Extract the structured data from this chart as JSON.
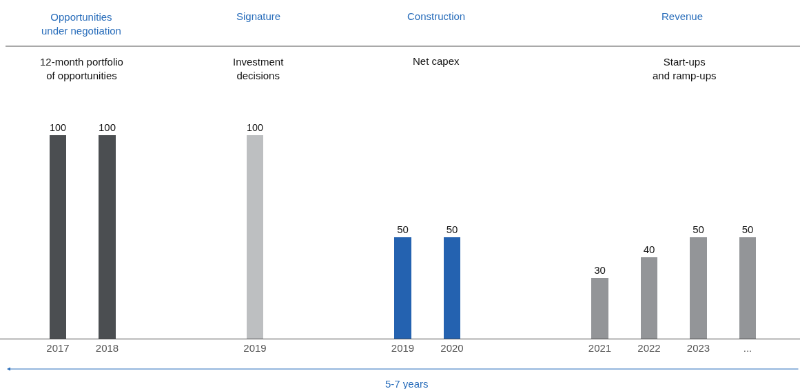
{
  "chart_data": {
    "type": "bar",
    "categories": [
      "2017",
      "2018",
      null,
      null,
      "2019",
      null,
      null,
      "2019",
      "2020",
      null,
      null,
      "2021",
      "2022",
      "2023",
      "..."
    ],
    "values": [
      100,
      100,
      null,
      null,
      100,
      null,
      null,
      50,
      50,
      null,
      null,
      30,
      40,
      50,
      50
    ],
    "colors": [
      "#4b4e51",
      "#4b4e51",
      null,
      null,
      "#bdbfc1",
      null,
      null,
      "#2462b0",
      "#2462b0",
      null,
      null,
      "#939598",
      "#939598",
      "#939598",
      "#939598"
    ],
    "data_labels": true,
    "annotations": [
      "Opportunities\nunder negotiation",
      "Signature",
      "Construction",
      "Revenue",
      "12-month portfolio\nof opportunities",
      "Investment\ndecisions",
      "Net capex",
      "Start-ups\nand ramp-ups",
      "5-7 years"
    ]
  }
}
